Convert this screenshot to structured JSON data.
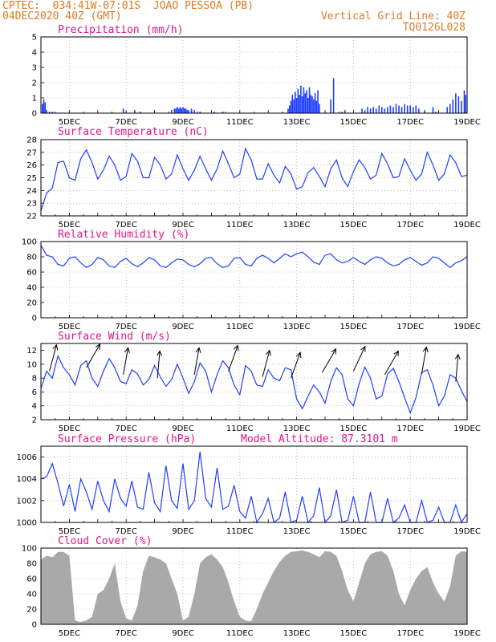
{
  "header": {
    "station": "CPTEC:  034:41W-07:01S  JOAO PESSOA (PB)",
    "date": "04DEC2020 40Z (GMT)",
    "grid_line": "Vertical Grid Line: 40Z",
    "run_code": "TQ0126L028"
  },
  "x_ticks": [
    "5DEC",
    "7DEC",
    "9DEC",
    "11DEC",
    "13DEC",
    "15DEC",
    "17DEC",
    "19DEC"
  ],
  "chart_data": [
    {
      "id": "precip",
      "type": "bar",
      "title": "Precipitation (mm/h)",
      "x_range_days": [
        4,
        19
      ],
      "ylim": [
        0,
        5
      ],
      "yticks": [
        0,
        1,
        2,
        3,
        4,
        5
      ],
      "color": "#1f3fff",
      "x": [
        4.05,
        4.1,
        4.15,
        4.2,
        4.3,
        4.4,
        6.9,
        7.0,
        7.3,
        7.5,
        8.6,
        8.7,
        8.75,
        8.8,
        8.85,
        8.9,
        8.95,
        9.0,
        9.05,
        9.1,
        9.15,
        9.2,
        9.3,
        9.4,
        9.6,
        10.1,
        10.4,
        12.7,
        12.75,
        12.8,
        12.85,
        12.9,
        12.95,
        13.0,
        13.05,
        13.1,
        13.15,
        13.2,
        13.25,
        13.3,
        13.35,
        13.4,
        13.45,
        13.5,
        13.55,
        13.6,
        13.65,
        13.7,
        13.75,
        13.8,
        14.2,
        14.3,
        14.6,
        14.7,
        15.3,
        15.4,
        15.5,
        15.6,
        15.7,
        15.8,
        15.9,
        16.0,
        16.1,
        16.2,
        16.3,
        16.4,
        16.5,
        16.6,
        16.7,
        16.8,
        16.9,
        17.0,
        17.1,
        17.2,
        17.3,
        17.5,
        17.8,
        17.9,
        18.3,
        18.4,
        18.5,
        18.6,
        18.7,
        18.8,
        18.9,
        18.95
      ],
      "values": [
        0.6,
        0.9,
        0.7,
        0.2,
        0.1,
        0.1,
        0.3,
        0.1,
        0.2,
        0.1,
        0.2,
        0.3,
        0.3,
        0.4,
        0.3,
        0.4,
        0.3,
        0.4,
        0.3,
        0.3,
        0.2,
        0.2,
        0.3,
        0.2,
        0.1,
        0.1,
        0.1,
        0.3,
        0.5,
        0.8,
        1.2,
        0.9,
        1.4,
        1.0,
        1.6,
        1.2,
        1.8,
        1.1,
        1.7,
        1.3,
        1.5,
        1.0,
        1.7,
        1.2,
        1.1,
        0.9,
        1.3,
        0.8,
        1.5,
        0.6,
        0.9,
        2.3,
        0.1,
        0.2,
        0.3,
        0.2,
        0.4,
        0.3,
        0.4,
        0.3,
        0.5,
        0.4,
        0.3,
        0.4,
        0.5,
        0.4,
        0.6,
        0.5,
        0.4,
        0.6,
        0.5,
        0.5,
        0.4,
        0.5,
        0.3,
        0.2,
        0.4,
        0.1,
        0.4,
        0.6,
        0.9,
        1.3,
        1.1,
        0.8,
        1.5,
        1.2
      ]
    },
    {
      "id": "temp",
      "type": "line",
      "title": "Surface Temperature (nC)",
      "x_range_days": [
        4,
        19
      ],
      "ylim": [
        22,
        28
      ],
      "yticks": [
        22,
        23,
        24,
        25,
        26,
        27,
        28
      ],
      "color": "#1f3fff",
      "x": [
        4.0,
        4.2,
        4.4,
        4.6,
        4.8,
        5.0,
        5.2,
        5.4,
        5.6,
        5.8,
        6.0,
        6.2,
        6.4,
        6.6,
        6.8,
        7.0,
        7.2,
        7.4,
        7.6,
        7.8,
        8.0,
        8.2,
        8.4,
        8.6,
        8.8,
        9.0,
        9.2,
        9.4,
        9.6,
        9.8,
        10.0,
        10.2,
        10.4,
        10.6,
        10.8,
        11.0,
        11.2,
        11.4,
        11.6,
        11.8,
        12.0,
        12.2,
        12.4,
        12.6,
        12.8,
        13.0,
        13.2,
        13.4,
        13.6,
        13.8,
        14.0,
        14.2,
        14.4,
        14.6,
        14.8,
        15.0,
        15.2,
        15.4,
        15.6,
        15.8,
        16.0,
        16.2,
        16.4,
        16.6,
        16.8,
        17.0,
        17.2,
        17.4,
        17.6,
        17.8,
        18.0,
        18.2,
        18.4,
        18.6,
        18.8,
        19.0
      ],
      "values": [
        22.4,
        23.8,
        24.2,
        26.2,
        26.3,
        25.0,
        24.8,
        26.5,
        27.2,
        26.2,
        24.9,
        25.6,
        26.7,
        26.0,
        24.8,
        25.1,
        26.9,
        26.3,
        25.0,
        25.0,
        26.6,
        26.0,
        24.9,
        25.3,
        26.8,
        25.7,
        24.8,
        25.6,
        26.7,
        25.7,
        24.8,
        25.7,
        27.1,
        26.1,
        25.0,
        25.3,
        27.3,
        26.4,
        24.9,
        24.9,
        26.1,
        25.2,
        24.6,
        25.9,
        25.3,
        24.1,
        24.3,
        25.4,
        25.8,
        25.1,
        24.3,
        25.7,
        26.4,
        25.0,
        24.3,
        25.5,
        26.4,
        25.8,
        24.9,
        25.2,
        26.9,
        26.1,
        25.0,
        25.1,
        26.5,
        25.6,
        24.8,
        25.3,
        27.0,
        26.0,
        24.8,
        25.3,
        26.8,
        26.2,
        25.1,
        25.2
      ]
    },
    {
      "id": "rh",
      "type": "line",
      "title": "Relative Humidity (%)",
      "x_range_days": [
        4,
        19
      ],
      "ylim": [
        0,
        100
      ],
      "yticks": [
        0,
        20,
        40,
        60,
        80,
        100
      ],
      "color": "#1f3fff",
      "x": [
        4.0,
        4.2,
        4.4,
        4.6,
        4.8,
        5.0,
        5.2,
        5.4,
        5.6,
        5.8,
        6.0,
        6.2,
        6.4,
        6.6,
        6.8,
        7.0,
        7.2,
        7.4,
        7.6,
        7.8,
        8.0,
        8.2,
        8.4,
        8.6,
        8.8,
        9.0,
        9.2,
        9.4,
        9.6,
        9.8,
        10.0,
        10.2,
        10.4,
        10.6,
        10.8,
        11.0,
        11.2,
        11.4,
        11.6,
        11.8,
        12.0,
        12.2,
        12.4,
        12.6,
        12.8,
        13.0,
        13.2,
        13.4,
        13.6,
        13.8,
        14.0,
        14.2,
        14.4,
        14.6,
        14.8,
        15.0,
        15.2,
        15.4,
        15.6,
        15.8,
        16.0,
        16.2,
        16.4,
        16.6,
        16.8,
        17.0,
        17.2,
        17.4,
        17.6,
        17.8,
        18.0,
        18.2,
        18.4,
        18.6,
        18.8,
        19.0
      ],
      "values": [
        95,
        82,
        80,
        70,
        68,
        78,
        80,
        72,
        66,
        70,
        79,
        76,
        68,
        66,
        74,
        78,
        71,
        67,
        72,
        79,
        76,
        68,
        66,
        72,
        77,
        76,
        70,
        67,
        71,
        78,
        79,
        71,
        66,
        68,
        78,
        79,
        70,
        68,
        78,
        82,
        78,
        72,
        78,
        84,
        80,
        84,
        86,
        80,
        73,
        70,
        82,
        84,
        76,
        72,
        74,
        79,
        74,
        70,
        76,
        80,
        78,
        72,
        68,
        70,
        76,
        79,
        74,
        69,
        72,
        80,
        78,
        72,
        66,
        72,
        75,
        80
      ]
    },
    {
      "id": "wind",
      "type": "line",
      "title": "Surface Wind (m/s)",
      "x_range_days": [
        4,
        19
      ],
      "ylim": [
        2,
        13
      ],
      "yticks": [
        2,
        4,
        6,
        8,
        10,
        12
      ],
      "color": "#1f3fff",
      "x": [
        4.0,
        4.2,
        4.4,
        4.6,
        4.8,
        5.0,
        5.2,
        5.4,
        5.6,
        5.8,
        6.0,
        6.2,
        6.4,
        6.6,
        6.8,
        7.0,
        7.2,
        7.4,
        7.6,
        7.8,
        8.0,
        8.2,
        8.4,
        8.6,
        8.8,
        9.0,
        9.2,
        9.4,
        9.6,
        9.8,
        10.0,
        10.2,
        10.4,
        10.6,
        10.8,
        11.0,
        11.2,
        11.4,
        11.6,
        11.8,
        12.0,
        12.2,
        12.4,
        12.6,
        12.8,
        13.0,
        13.2,
        13.4,
        13.6,
        13.8,
        14.0,
        14.2,
        14.4,
        14.6,
        14.8,
        15.0,
        15.2,
        15.4,
        15.6,
        15.8,
        16.0,
        16.2,
        16.4,
        16.6,
        16.8,
        17.0,
        17.2,
        17.4,
        17.6,
        17.8,
        18.0,
        18.2,
        18.4,
        18.6,
        18.8,
        19.0
      ],
      "values": [
        6.5,
        9.0,
        8.0,
        11.2,
        9.5,
        8.5,
        7.0,
        9.8,
        10.5,
        8.0,
        6.8,
        9.0,
        10.8,
        9.5,
        7.5,
        7.2,
        9.2,
        8.6,
        7.0,
        7.8,
        9.8,
        8.2,
        6.8,
        7.8,
        10.0,
        8.0,
        5.8,
        7.5,
        10.2,
        9.0,
        6.0,
        8.5,
        10.5,
        9.5,
        7.0,
        5.6,
        9.8,
        9.0,
        7.0,
        6.8,
        9.2,
        8.0,
        7.6,
        9.5,
        9.2,
        5.0,
        3.6,
        5.4,
        7.0,
        6.0,
        4.4,
        7.5,
        9.5,
        8.5,
        5.0,
        4.0,
        7.2,
        9.6,
        8.0,
        5.0,
        5.4,
        8.6,
        9.4,
        7.5,
        5.2,
        3.0,
        5.2,
        8.8,
        9.2,
        7.0,
        4.0,
        5.4,
        8.5,
        8.0,
        6.2,
        4.6
      ],
      "barbs": [
        {
          "x": 4.3,
          "speed": 9.0,
          "dir": 105
        },
        {
          "x": 5.6,
          "speed": 9.5,
          "dir": 120
        },
        {
          "x": 6.9,
          "speed": 8.5,
          "dir": 100
        },
        {
          "x": 8.1,
          "speed": 8.0,
          "dir": 95
        },
        {
          "x": 9.4,
          "speed": 8.5,
          "dir": 100
        },
        {
          "x": 10.6,
          "speed": 9.0,
          "dir": 110
        },
        {
          "x": 11.8,
          "speed": 8.2,
          "dir": 105
        },
        {
          "x": 12.8,
          "speed": 8.0,
          "dir": 110
        },
        {
          "x": 13.9,
          "speed": 8.8,
          "dir": 120
        },
        {
          "x": 15.0,
          "speed": 9.0,
          "dir": 115
        },
        {
          "x": 16.1,
          "speed": 8.5,
          "dir": 120
        },
        {
          "x": 17.4,
          "speed": 8.6,
          "dir": 100
        },
        {
          "x": 18.6,
          "speed": 7.5,
          "dir": 95
        }
      ]
    },
    {
      "id": "pres",
      "type": "line",
      "title": "Surface Pressure (hPa)",
      "annotation": "Model Altitude: 87.3101 m",
      "x_range_days": [
        4,
        19
      ],
      "ylim": [
        1000,
        1007
      ],
      "yticks": [
        1000,
        1002,
        1004,
        1006
      ],
      "color": "#1f3fff",
      "x": [
        4.0,
        4.2,
        4.4,
        4.6,
        4.8,
        5.0,
        5.2,
        5.4,
        5.6,
        5.8,
        6.0,
        6.2,
        6.4,
        6.6,
        6.8,
        7.0,
        7.2,
        7.4,
        7.6,
        7.8,
        8.0,
        8.2,
        8.4,
        8.6,
        8.8,
        9.0,
        9.2,
        9.4,
        9.6,
        9.8,
        10.0,
        10.2,
        10.4,
        10.6,
        10.8,
        11.0,
        11.2,
        11.4,
        11.6,
        11.8,
        12.0,
        12.2,
        12.4,
        12.6,
        12.8,
        13.0,
        13.2,
        13.4,
        13.6,
        13.8,
        14.0,
        14.2,
        14.4,
        14.6,
        14.8,
        15.0,
        15.2,
        15.4,
        15.6,
        15.8,
        16.0,
        16.2,
        16.4,
        16.6,
        16.8,
        17.0,
        17.2,
        17.4,
        17.6,
        17.8,
        18.0,
        18.2,
        18.4,
        18.6,
        18.8,
        19.0
      ],
      "values": [
        1004.0,
        1004.2,
        1005.4,
        1003.6,
        1001.5,
        1003.5,
        1001.0,
        1004.0,
        1002.8,
        1001.2,
        1003.8,
        1002.0,
        1001.0,
        1004.0,
        1002.2,
        1001.5,
        1003.8,
        1001.4,
        1001.2,
        1004.6,
        1001.8,
        1001.0,
        1005.2,
        1002.0,
        1001.3,
        1005.4,
        1001.2,
        1002.0,
        1006.5,
        1002.2,
        1001.4,
        1005.0,
        1001.2,
        1001.5,
        1003.4,
        1001.0,
        1000.4,
        1002.4,
        1000.0,
        1000.8,
        1002.2,
        1000.0,
        1000.4,
        1002.8,
        1000.0,
        1000.2,
        1002.4,
        1000.0,
        1000.6,
        1003.2,
        1000.0,
        1000.6,
        1003.0,
        1000.0,
        1000.2,
        1002.4,
        1000.0,
        1000.0,
        1002.8,
        1000.0,
        1000.0,
        1002.2,
        1000.0,
        1000.4,
        1001.6,
        1000.0,
        1000.0,
        1002.0,
        1000.0,
        1000.2,
        1001.4,
        1000.0,
        1000.0,
        1001.6,
        1000.0,
        1000.8
      ]
    },
    {
      "id": "cloud",
      "type": "area",
      "title": "Cloud Cover (%)",
      "x_range_days": [
        4,
        19
      ],
      "ylim": [
        0,
        100
      ],
      "yticks": [
        0,
        20,
        40,
        60,
        80,
        100
      ],
      "color": "#a9a9a9",
      "x": [
        4.0,
        4.2,
        4.4,
        4.6,
        4.8,
        5.0,
        5.2,
        5.4,
        5.6,
        5.8,
        6.0,
        6.2,
        6.4,
        6.6,
        6.8,
        7.0,
        7.2,
        7.4,
        7.6,
        7.8,
        8.0,
        8.2,
        8.4,
        8.6,
        8.8,
        9.0,
        9.2,
        9.4,
        9.6,
        9.8,
        10.0,
        10.2,
        10.4,
        10.6,
        10.8,
        11.0,
        11.2,
        11.4,
        11.6,
        11.8,
        12.0,
        12.2,
        12.4,
        12.6,
        12.8,
        13.0,
        13.2,
        13.4,
        13.6,
        13.8,
        14.0,
        14.2,
        14.4,
        14.6,
        14.8,
        15.0,
        15.2,
        15.4,
        15.6,
        15.8,
        16.0,
        16.2,
        16.4,
        16.6,
        16.8,
        17.0,
        17.2,
        17.4,
        17.6,
        17.8,
        18.0,
        18.2,
        18.4,
        18.6,
        18.8,
        19.0
      ],
      "values": [
        85,
        90,
        88,
        95,
        95,
        90,
        5,
        3,
        5,
        10,
        40,
        45,
        60,
        80,
        30,
        8,
        5,
        25,
        70,
        90,
        88,
        85,
        80,
        60,
        40,
        5,
        10,
        40,
        80,
        88,
        92,
        85,
        75,
        55,
        30,
        10,
        5,
        4,
        20,
        40,
        55,
        70,
        82,
        90,
        95,
        96,
        97,
        95,
        92,
        88,
        96,
        95,
        90,
        70,
        45,
        30,
        55,
        80,
        92,
        95,
        96,
        90,
        70,
        40,
        25,
        45,
        60,
        70,
        75,
        55,
        40,
        30,
        50,
        90,
        96,
        95
      ]
    }
  ]
}
